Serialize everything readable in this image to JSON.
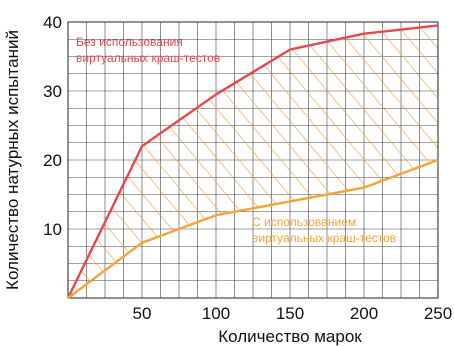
{
  "chart_data": {
    "type": "area",
    "xlabel": "Количество марок",
    "ylabel": "Количество натурных испытаний",
    "xlim": [
      0,
      250
    ],
    "ylim": [
      0,
      40
    ],
    "x_ticks": [
      50,
      100,
      150,
      200,
      250
    ],
    "y_ticks": [
      10,
      20,
      30,
      40
    ],
    "grid": true,
    "series": [
      {
        "label_lines": [
          "Без использования",
          "виртуальных краш-тестов"
        ],
        "color": "#e5484d",
        "points": [
          [
            0,
            0
          ],
          [
            50,
            22
          ],
          [
            100,
            29.5
          ],
          [
            150,
            36
          ],
          [
            200,
            38.3
          ],
          [
            250,
            39.5
          ]
        ]
      },
      {
        "label_lines": [
          "С использованием",
          "виртуальных краш-тестов"
        ],
        "color": "#f7a13a",
        "points": [
          [
            0,
            0
          ],
          [
            50,
            8
          ],
          [
            100,
            12
          ],
          [
            150,
            14
          ],
          [
            200,
            16
          ],
          [
            250,
            20
          ]
        ]
      }
    ],
    "fill_between": {
      "pattern": "diagonal-hatch",
      "color": "#f7a13a"
    }
  }
}
